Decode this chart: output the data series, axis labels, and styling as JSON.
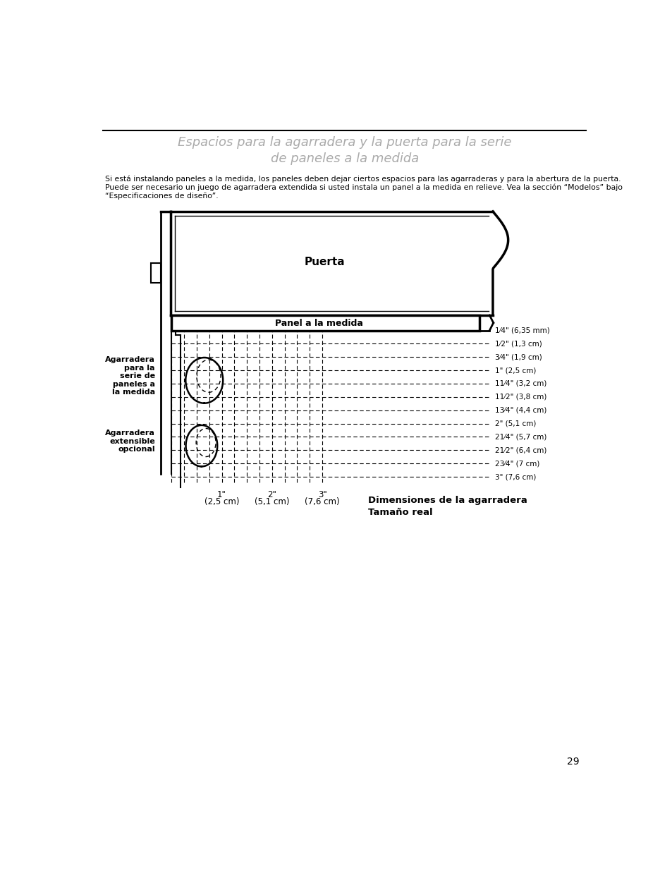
{
  "title": "Espacios para la agarradera y la puerta para la serie\nde paneles a la medida",
  "title_color": "#aaaaaa",
  "body_text": "Si está instalando paneles a la medida, los paneles deben dejar ciertos espacios para las agarraderas y para la abertura de la puerta.\nPuede ser necesario un juego de agarradera extendida si usted instala un panel a la medida en relieve. Vea la sección “Modelos” bajo\n“Especificaciones de diseño”.",
  "page_number": "29",
  "dimension_labels_right": [
    "1⁄4\" (6,35 mm)",
    "1⁄2\" (1,3 cm)",
    "3⁄4\" (1,9 cm)",
    "1\" (2,5 cm)",
    "11⁄4\" (3,2 cm)",
    "11⁄2\" (3,8 cm)",
    "13⁄4\" (4,4 cm)",
    "2\" (5,1 cm)",
    "21⁄4\" (5,7 cm)",
    "21⁄2\" (6,4 cm)",
    "23⁄4\" (7 cm)",
    "3\" (7,6 cm)"
  ],
  "label_puerta": "Puerta",
  "label_panel": "Panel a la medida",
  "label_agarradera1": "Agarradera\npara la\nserie de\npaneles a\nla medida",
  "label_agarradera2": "Agarradera\nextensible\nopcional",
  "label_dimensiones": "Dimensiones de la agarradera\nTamaño real",
  "background_color": "#ffffff",
  "line_color": "#000000"
}
